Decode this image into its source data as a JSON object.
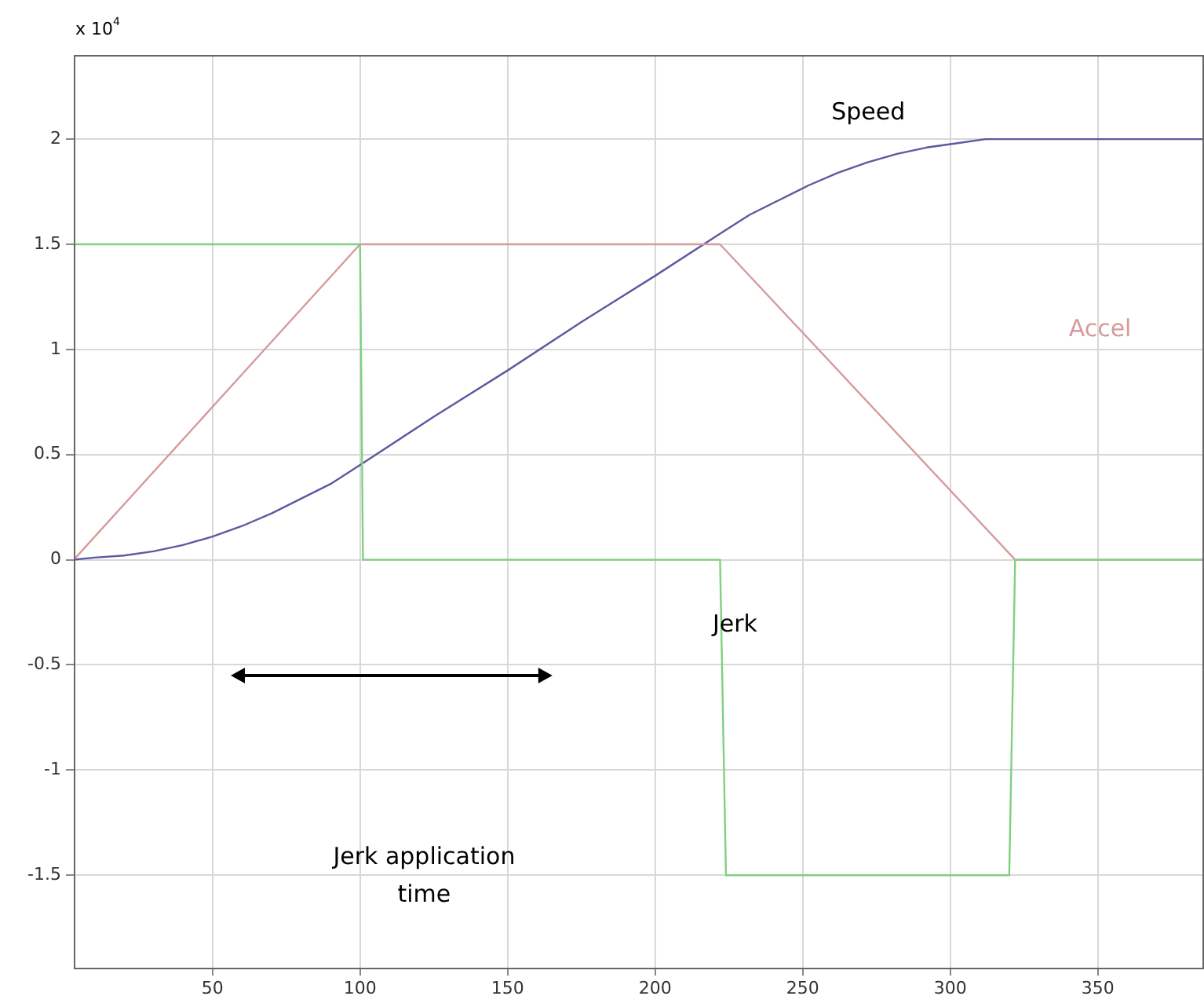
{
  "chart_data": {
    "type": "line",
    "ylabel": "x 10$^{4}$",
    "xlim": [
      3,
      386
    ],
    "xticks": [
      50,
      100,
      150,
      200,
      250,
      300,
      350
    ],
    "ylim": [
      -1.94,
      2.4
    ],
    "yticks": [
      -1.5,
      -1,
      -0.5,
      0,
      0.5,
      1,
      1.5,
      2
    ],
    "grid": true,
    "legend": false,
    "series": [
      {
        "name": "Jerk",
        "color": "#80d080",
        "x": [
          3,
          100,
          101,
          222,
          224,
          320,
          322,
          386
        ],
        "values": [
          1.5,
          1.5,
          0,
          0,
          -1.5,
          -1.5,
          0,
          0
        ]
      },
      {
        "name": "Accel",
        "color": "#d89a9a",
        "x": [
          3,
          100,
          222,
          322,
          386
        ],
        "values": [
          0,
          1.5,
          1.5,
          0,
          0
        ]
      },
      {
        "name": "Speed",
        "color": "#5a5aa0",
        "x": [
          3,
          10,
          20,
          30,
          40,
          50,
          60,
          70,
          80,
          90,
          100,
          125,
          150,
          175,
          200,
          222,
          232,
          242,
          252,
          262,
          272,
          282,
          292,
          302,
          312,
          322,
          386
        ],
        "values": [
          0,
          0.01,
          0.02,
          0.04,
          0.07,
          0.11,
          0.16,
          0.22,
          0.29,
          0.36,
          0.45,
          0.68,
          0.9,
          1.13,
          1.35,
          1.55,
          1.64,
          1.71,
          1.78,
          1.84,
          1.89,
          1.93,
          1.96,
          1.98,
          2,
          2,
          2
        ]
      }
    ],
    "annotations": [
      "Jerk application time"
    ]
  }
}
